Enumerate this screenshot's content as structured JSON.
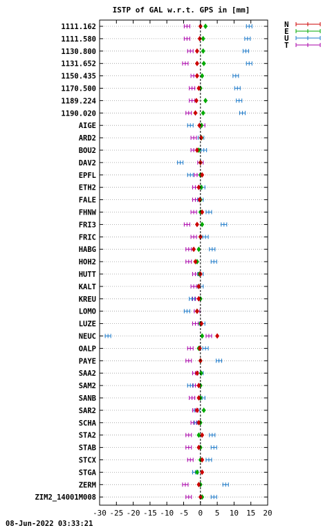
{
  "chart_data": {
    "type": "scatter",
    "title": "ISTP of GAL w.r.t. GPS in [mm]",
    "xlabel": "",
    "ylabel": "",
    "xlim": [
      -30,
      20
    ],
    "xticks": [
      -30,
      -25,
      -20,
      -15,
      -10,
      -5,
      0,
      5,
      10,
      15,
      20
    ],
    "xtick_labels": [
      "-30",
      "-25",
      "-20",
      "-15",
      "-10",
      "-5",
      "0",
      "5",
      "10",
      "15",
      "20"
    ],
    "grid": true,
    "legend_position": "top-right",
    "series": [
      {
        "name": "N",
        "color": "#cc0000"
      },
      {
        "name": "E",
        "color": "#00aa00"
      },
      {
        "name": "U",
        "color": "#1a78c8"
      },
      {
        "name": "T",
        "color": "#aa00aa"
      }
    ],
    "stations": [
      {
        "label": "1111.162",
        "N": 0.0,
        "E": 1.5,
        "U": 14.5,
        "T": -4.0
      },
      {
        "label": "1111.580",
        "N": -0.2,
        "E": 0.8,
        "U": 14.0,
        "T": -4.0
      },
      {
        "label": "1130.800",
        "N": -1.0,
        "E": 0.8,
        "U": 13.5,
        "T": -3.0
      },
      {
        "label": "1131.652",
        "N": -1.0,
        "E": 1.0,
        "U": 14.5,
        "T": -4.5
      },
      {
        "label": "1150.435",
        "N": -1.0,
        "E": 0.5,
        "U": 10.5,
        "T": -2.0
      },
      {
        "label": "1170.500",
        "N": -0.5,
        "E": 0.0,
        "U": 11.0,
        "T": -2.5
      },
      {
        "label": "1189.224",
        "N": -1.2,
        "E": 1.5,
        "U": 11.5,
        "T": -2.5
      },
      {
        "label": "1190.020",
        "N": -1.5,
        "E": 0.8,
        "U": 12.5,
        "T": -3.5
      },
      {
        "label": "AIGE",
        "N": -0.3,
        "E": 0.3,
        "U": -3.0,
        "T": 0.5
      },
      {
        "label": "ARD2",
        "N": 0.2,
        "E": 0.3,
        "U": 0.2,
        "T": -2.0
      },
      {
        "label": "BOU2",
        "N": -1.0,
        "E": -0.5,
        "U": 1.0,
        "T": -2.0
      },
      {
        "label": "DAV2",
        "N": 0.0,
        "E": 0.0,
        "U": -6.0,
        "T": 0.0
      },
      {
        "label": "EPFL",
        "N": 0.5,
        "E": 0.0,
        "U": -3.0,
        "T": -1.0
      },
      {
        "label": "ETH2",
        "N": -0.5,
        "E": 0.2,
        "U": 0.5,
        "T": -1.5
      },
      {
        "label": "FALE",
        "N": -0.2,
        "E": 0.0,
        "U": 0.0,
        "T": -1.5
      },
      {
        "label": "FHNW",
        "N": 0.5,
        "E": 0.0,
        "U": 2.5,
        "T": -2.0
      },
      {
        "label": "FRI3",
        "N": -1.0,
        "E": 0.5,
        "U": 7.0,
        "T": -4.0
      },
      {
        "label": "FRIC",
        "N": 0.0,
        "E": 0.0,
        "U": 1.5,
        "T": -2.0
      },
      {
        "label": "HABG",
        "N": -2.0,
        "E": -0.5,
        "U": 3.5,
        "T": -3.5
      },
      {
        "label": "HOH2",
        "N": -1.5,
        "E": -1.0,
        "U": 4.0,
        "T": -3.5
      },
      {
        "label": "HUTT",
        "N": 0.0,
        "E": -0.3,
        "U": 0.0,
        "T": -1.5
      },
      {
        "label": "KALT",
        "N": -0.5,
        "E": -0.5,
        "U": 0.0,
        "T": -2.0
      },
      {
        "label": "KREU",
        "N": -0.5,
        "E": 0.0,
        "U": -2.5,
        "T": -1.5
      },
      {
        "label": "LOMO",
        "N": -1.0,
        "E": -1.0,
        "U": -4.0,
        "T": -1.0
      },
      {
        "label": "LUZE",
        "N": 0.3,
        "E": 0.0,
        "U": 0.5,
        "T": -1.5
      },
      {
        "label": "NEUC",
        "N": 5.0,
        "E": 0.5,
        "U": -27.5,
        "T": 2.5
      },
      {
        "label": "OALP",
        "N": -0.2,
        "E": -0.5,
        "U": 1.5,
        "T": -3.0
      },
      {
        "label": "PAYE",
        "N": 0.0,
        "E": 0.0,
        "U": 5.5,
        "T": -3.5
      },
      {
        "label": "SAA2",
        "N": -1.0,
        "E": 0.2,
        "U": 0.0,
        "T": -1.5
      },
      {
        "label": "SAM2",
        "N": -0.5,
        "E": 0.0,
        "U": -3.0,
        "T": -1.5
      },
      {
        "label": "SANB",
        "N": -0.5,
        "E": 0.0,
        "U": 0.5,
        "T": -2.5
      },
      {
        "label": "SAR2",
        "N": -1.0,
        "E": 1.0,
        "U": -1.0,
        "T": -1.5
      },
      {
        "label": "SCHA",
        "N": -0.5,
        "E": 0.0,
        "U": -1.0,
        "T": -2.0
      },
      {
        "label": "STA2",
        "N": 0.5,
        "E": -0.5,
        "U": 3.5,
        "T": -3.5
      },
      {
        "label": "STAB",
        "N": -0.5,
        "E": 0.0,
        "U": 4.0,
        "T": -3.5
      },
      {
        "label": "STCX",
        "N": 0.5,
        "E": 0.0,
        "U": 2.5,
        "T": -3.0
      },
      {
        "label": "STGA",
        "N": 0.5,
        "E": -1.0,
        "U": -1.5,
        "T": -1.5
      },
      {
        "label": "ZERM",
        "N": -0.5,
        "E": 0.0,
        "U": 7.5,
        "T": -4.5
      },
      {
        "label": "ZIM2_14001M008",
        "N": 0.0,
        "E": 0.5,
        "U": 4.0,
        "T": -3.5
      }
    ]
  },
  "timestamp": "08-Jun-2022 03:33:21"
}
